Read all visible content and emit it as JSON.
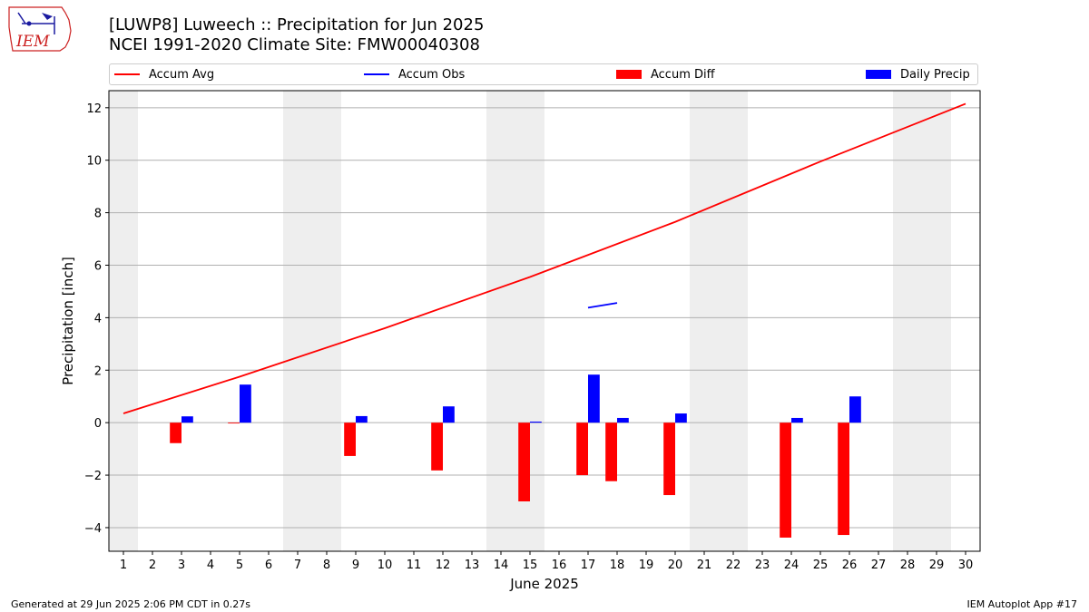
{
  "header": {
    "title_line1": "[LUWP8] Luweech :: Precipitation for Jun 2025",
    "title_line2": "NCEI 1991-2020 Climate Site: FMW00040308"
  },
  "logo": {
    "text": "IEM",
    "icon": "iem-iowa-logo-icon"
  },
  "legend": [
    {
      "label": "Accum Avg",
      "kind": "line",
      "color": "#ff0000"
    },
    {
      "label": "Accum Obs",
      "kind": "line",
      "color": "#0000ff"
    },
    {
      "label": "Accum Diff",
      "kind": "bar",
      "color": "#ff0000"
    },
    {
      "label": "Daily Precip",
      "kind": "bar",
      "color": "#0000ff"
    }
  ],
  "footer": {
    "left": "Generated at 29 Jun 2025 2:06 PM CDT in 0.27s",
    "right": "IEM Autoplot App #17"
  },
  "chart_data": {
    "type": "bar",
    "title": "[LUWP8] Luweech :: Precipitation for Jun 2025",
    "subtitle": "NCEI 1991-2020 Climate Site: FMW00040308",
    "xlabel": "June 2025",
    "ylabel": "Precipitation [inch]",
    "xlim": [
      0.5,
      30.5
    ],
    "ylim": [
      -4.9,
      12.65
    ],
    "yticks": [
      -4,
      -2,
      0,
      2,
      4,
      6,
      8,
      10,
      12
    ],
    "ytick_labels": [
      "−4",
      "−2",
      "0",
      "2",
      "4",
      "6",
      "8",
      "10",
      "12"
    ],
    "xticks": [
      1,
      2,
      3,
      4,
      5,
      6,
      7,
      8,
      9,
      10,
      11,
      12,
      13,
      14,
      15,
      16,
      17,
      18,
      19,
      20,
      21,
      22,
      23,
      24,
      25,
      26,
      27,
      28,
      29,
      30
    ],
    "grid": "horizontal",
    "legend_position": "top",
    "weekend_shading": [
      [
        0.5,
        1.5
      ],
      [
        6.5,
        8.5
      ],
      [
        13.5,
        15.5
      ],
      [
        20.5,
        22.5
      ],
      [
        27.5,
        29.5
      ]
    ],
    "accum_avg": {
      "name": "Accum Avg",
      "color": "#ff0000",
      "x": [
        1,
        5,
        10,
        15,
        20,
        25,
        30
      ],
      "y": [
        0.35,
        1.75,
        3.6,
        5.55,
        7.65,
        9.95,
        12.15
      ]
    },
    "accum_obs": {
      "name": "Accum Obs",
      "color": "#0000ff",
      "x": [
        17,
        18
      ],
      "y": [
        4.38,
        4.56
      ]
    },
    "accum_diff": {
      "name": "Accum Diff",
      "color": "#ff0000",
      "x": [
        3,
        5,
        9,
        12,
        15,
        17,
        18,
        20,
        24,
        26
      ],
      "y": [
        -0.78,
        -0.03,
        -1.27,
        -1.82,
        -3.0,
        -2.0,
        -2.23,
        -2.76,
        -4.38,
        -4.28
      ]
    },
    "daily_precip": {
      "name": "Daily Precip",
      "color": "#0000ff",
      "x": [
        3,
        5,
        9,
        12,
        15,
        17,
        18,
        20,
        24,
        26
      ],
      "y": [
        0.24,
        1.45,
        0.25,
        0.62,
        0.04,
        1.83,
        0.18,
        0.35,
        0.18,
        1.0
      ]
    }
  }
}
